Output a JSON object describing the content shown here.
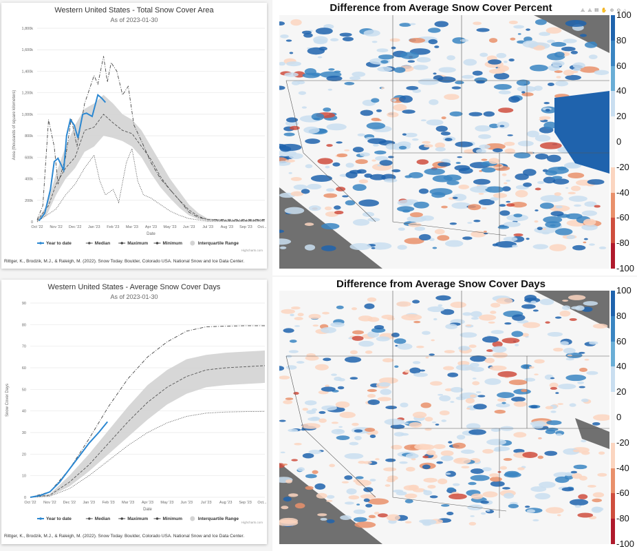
{
  "chart_data": [
    {
      "type": "line",
      "title": "Western United States - Total Snow Cover Area",
      "subtitle": "As of 2023-01-30",
      "xlabel": "Date",
      "ylabel": "Area (thousands of square kilometers)",
      "categories": [
        "Oct '22",
        "Nov '22",
        "Dec '22",
        "Jan '23",
        "Feb '23",
        "Mar '23",
        "Apr '23",
        "May '23",
        "Jun '23",
        "Jul '23",
        "Aug '23",
        "Sep '23",
        "Oct..."
      ],
      "yticks": [
        "0",
        "200k",
        "400k",
        "600k",
        "800k",
        "1,000k",
        "1,200k",
        "1,400k",
        "1,600k",
        "1,800k"
      ],
      "ylim": [
        0,
        1800
      ],
      "series": [
        {
          "name": "Year to date",
          "color": "#2b87d1",
          "style": "solid",
          "points": [
            [
              0.1,
              10
            ],
            [
              0.4,
              80
            ],
            [
              0.7,
              300
            ],
            [
              0.9,
              560
            ],
            [
              1.1,
              590
            ],
            [
              1.4,
              480
            ],
            [
              1.55,
              800
            ],
            [
              1.75,
              950
            ],
            [
              1.95,
              900
            ],
            [
              2.15,
              780
            ],
            [
              2.4,
              1000
            ],
            [
              2.6,
              1010
            ],
            [
              2.9,
              980
            ],
            [
              3.2,
              1180
            ],
            [
              3.4,
              1150
            ],
            [
              3.6,
              1110
            ]
          ]
        },
        {
          "name": "Median",
          "color": "#555",
          "style": "dash",
          "points": [
            [
              0,
              10
            ],
            [
              0.6,
              150
            ],
            [
              1,
              350
            ],
            [
              1.5,
              500
            ],
            [
              2,
              600
            ],
            [
              2.5,
              850
            ],
            [
              3,
              880
            ],
            [
              3.5,
              1000
            ],
            [
              4,
              920
            ],
            [
              4.5,
              850
            ],
            [
              5,
              820
            ],
            [
              5.5,
              700
            ],
            [
              6,
              580
            ],
            [
              6.5,
              420
            ],
            [
              7,
              300
            ],
            [
              7.5,
              200
            ],
            [
              8,
              110
            ],
            [
              8.5,
              50
            ],
            [
              9,
              20
            ],
            [
              10,
              10
            ],
            [
              11,
              10
            ],
            [
              12,
              15
            ]
          ]
        },
        {
          "name": "Maximum",
          "color": "#444",
          "style": "dashdot",
          "points": [
            [
              0,
              20
            ],
            [
              0.3,
              150
            ],
            [
              0.6,
              950
            ],
            [
              0.9,
              700
            ],
            [
              1.1,
              350
            ],
            [
              1.5,
              600
            ],
            [
              1.8,
              960
            ],
            [
              2.1,
              700
            ],
            [
              2.5,
              1100
            ],
            [
              3,
              1360
            ],
            [
              3.2,
              1280
            ],
            [
              3.5,
              1540
            ],
            [
              3.7,
              1300
            ],
            [
              3.9,
              1480
            ],
            [
              4.2,
              1400
            ],
            [
              4.5,
              1180
            ],
            [
              4.8,
              1260
            ],
            [
              5.1,
              900
            ],
            [
              5.5,
              750
            ],
            [
              6,
              550
            ],
            [
              6.5,
              400
            ],
            [
              7,
              300
            ],
            [
              7.5,
              200
            ],
            [
              8,
              90
            ],
            [
              8.5,
              40
            ],
            [
              9,
              20
            ],
            [
              12,
              20
            ]
          ]
        },
        {
          "name": "Minimum",
          "color": "#444",
          "style": "dot",
          "points": [
            [
              0,
              0
            ],
            [
              0.5,
              60
            ],
            [
              1,
              120
            ],
            [
              1.5,
              250
            ],
            [
              2,
              350
            ],
            [
              2.5,
              500
            ],
            [
              3,
              620
            ],
            [
              3.3,
              380
            ],
            [
              3.6,
              250
            ],
            [
              4,
              300
            ],
            [
              4.3,
              180
            ],
            [
              4.7,
              550
            ],
            [
              5,
              680
            ],
            [
              5.3,
              380
            ],
            [
              5.6,
              250
            ],
            [
              6,
              220
            ],
            [
              6.5,
              160
            ],
            [
              7,
              100
            ],
            [
              7.5,
              60
            ],
            [
              8,
              30
            ],
            [
              9,
              5
            ],
            [
              12,
              5
            ]
          ]
        }
      ],
      "band": {
        "name": "Interquartile Range",
        "color": "#d3d3d3",
        "points": [
          [
            0,
            0,
            20
          ],
          [
            0.5,
            60,
            150
          ],
          [
            1,
            250,
            450
          ],
          [
            1.5,
            400,
            700
          ],
          [
            2,
            500,
            900
          ],
          [
            2.5,
            650,
            1050
          ],
          [
            3,
            700,
            1100
          ],
          [
            3.5,
            800,
            1180
          ],
          [
            4,
            780,
            1100
          ],
          [
            4.5,
            750,
            1000
          ],
          [
            5,
            700,
            950
          ],
          [
            5.5,
            600,
            850
          ],
          [
            6,
            450,
            700
          ],
          [
            6.5,
            320,
            550
          ],
          [
            7,
            220,
            400
          ],
          [
            7.5,
            130,
            280
          ],
          [
            8,
            60,
            160
          ],
          [
            8.5,
            25,
            80
          ],
          [
            9,
            10,
            30
          ],
          [
            10,
            5,
            15
          ],
          [
            12,
            8,
            20
          ]
        ]
      },
      "credit": "Rittger, K., Brodzik, M.J., & Raleigh, M. (2022). Snow Today. Boulder, Colorado USA. National Snow and Ice Data Center.",
      "watermark": "Highcharts.com"
    },
    {
      "type": "line",
      "title": "Western United States - Average Snow Cover Days",
      "subtitle": "As of 2023-01-30",
      "xlabel": "Date",
      "ylabel": "Snow Cover Days",
      "categories": [
        "Oct '22",
        "Nov '22",
        "Dec '22",
        "Jan '23",
        "Feb '23",
        "Mar '23",
        "Apr '23",
        "May '23",
        "Jun '23",
        "Jul '23",
        "Aug '23",
        "Sep '23",
        "Oct..."
      ],
      "yticks": [
        "0",
        "10",
        "20",
        "30",
        "40",
        "50",
        "60",
        "70",
        "80",
        "90"
      ],
      "ylim": [
        0,
        90
      ],
      "series": [
        {
          "name": "Year to date",
          "color": "#2b87d1",
          "style": "solid",
          "points": [
            [
              0,
              0
            ],
            [
              0.5,
              0.8
            ],
            [
              1,
              2.5
            ],
            [
              1.5,
              7
            ],
            [
              2,
              13
            ],
            [
              2.5,
              19
            ],
            [
              3,
              25
            ],
            [
              3.5,
              30
            ],
            [
              3.95,
              35
            ]
          ]
        },
        {
          "name": "Median",
          "color": "#555",
          "style": "dash",
          "points": [
            [
              0,
              0
            ],
            [
              1,
              1
            ],
            [
              2,
              7
            ],
            [
              3,
              15
            ],
            [
              4,
              25
            ],
            [
              5,
              35
            ],
            [
              6,
              44
            ],
            [
              7,
              51
            ],
            [
              8,
              56
            ],
            [
              9,
              59
            ],
            [
              10,
              60
            ],
            [
              11,
              60.5
            ],
            [
              12,
              61
            ]
          ]
        },
        {
          "name": "Maximum",
          "color": "#444",
          "style": "dashdot",
          "points": [
            [
              0,
              0
            ],
            [
              1,
              2.5
            ],
            [
              2,
              13
            ],
            [
              3,
              27
            ],
            [
              4,
              42
            ],
            [
              5,
              55
            ],
            [
              6,
              65
            ],
            [
              7,
              72
            ],
            [
              8,
              77
            ],
            [
              9,
              79
            ],
            [
              10,
              79.3
            ],
            [
              11,
              79.5
            ],
            [
              12,
              79.5
            ]
          ]
        },
        {
          "name": "Minimum",
          "color": "#444",
          "style": "dot",
          "points": [
            [
              0,
              0
            ],
            [
              1,
              0.5
            ],
            [
              2,
              4
            ],
            [
              3,
              10
            ],
            [
              4,
              17
            ],
            [
              5,
              24
            ],
            [
              6,
              30
            ],
            [
              7,
              34.5
            ],
            [
              8,
              37.5
            ],
            [
              9,
              39
            ],
            [
              10,
              39.5
            ],
            [
              11,
              39.7
            ],
            [
              12,
              39.8
            ]
          ]
        }
      ],
      "band": {
        "name": "Interquartile Range",
        "color": "#d3d3d3",
        "points": [
          [
            0,
            0,
            0
          ],
          [
            1,
            0.5,
            1.5
          ],
          [
            2,
            5,
            10
          ],
          [
            3,
            12,
            20
          ],
          [
            4,
            20,
            31
          ],
          [
            5,
            28,
            42
          ],
          [
            6,
            36,
            52
          ],
          [
            7,
            43,
            59
          ],
          [
            8,
            48,
            64
          ],
          [
            9,
            51,
            66
          ],
          [
            10,
            52,
            67
          ],
          [
            11,
            52.5,
            67.5
          ],
          [
            12,
            53,
            68
          ]
        ]
      },
      "credit": "Rittger, K., Brodzik, M.J., & Raleigh, M. (2022). Snow Today. Boulder, Colorado USA. National Snow and Ice Data Center.",
      "watermark": "Highcharts.com"
    }
  ],
  "maps": [
    {
      "title": "Difference from Average Snow Cover Percent",
      "toolbar": "⟁ ⟁ ▤ ✋ ⊕ ⊖ ⌂",
      "bias": 0.5
    },
    {
      "title": "Difference from Average Snow Cover Days",
      "bias": 0.3
    }
  ],
  "colorbar": {
    "labels": [
      "100",
      "80",
      "60",
      "40",
      "20",
      "0",
      "-20",
      "-40",
      "-60",
      "-80",
      "-100"
    ],
    "colors": [
      "#1f63ad",
      "#3a85c2",
      "#6aaed6",
      "#c9def0",
      "#f5f5f5",
      "#fbd5c0",
      "#e9906b",
      "#cf4e3e",
      "#b01a2c"
    ]
  }
}
